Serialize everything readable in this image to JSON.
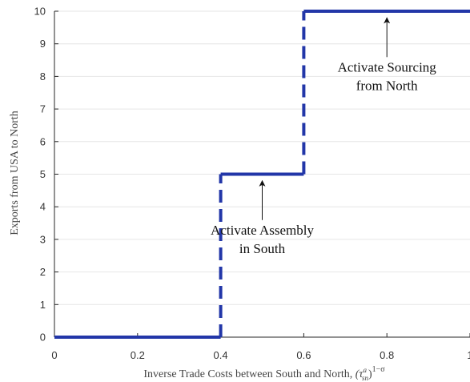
{
  "chart_data": {
    "type": "line",
    "title": "",
    "xlabel": "Inverse Trade Costs between South and North, ",
    "xlabel_math": "(τ",
    "xlabel_sup_a": "a",
    "xlabel_sub_sn": "sn",
    "xlabel_close": ")",
    "xlabel_exp": "1−σ",
    "ylabel": "Exports from USA to North",
    "xlim": [
      0,
      1
    ],
    "ylim": [
      0,
      10
    ],
    "xticks": [
      0,
      0.2,
      0.4,
      0.6,
      0.8,
      1
    ],
    "xtick_labels": [
      "0",
      "0.2",
      "0.4",
      "0.6",
      "0.8",
      "1"
    ],
    "yticks": [
      0,
      1,
      2,
      3,
      4,
      5,
      6,
      7,
      8,
      9,
      10
    ],
    "ytick_labels": [
      "0",
      "1",
      "2",
      "3",
      "4",
      "5",
      "6",
      "7",
      "8",
      "9",
      "10"
    ],
    "grid": "horizontal",
    "series": [
      {
        "color": "#2236a8",
        "segments": [
          {
            "style": "solid",
            "points": [
              [
                0,
                0
              ],
              [
                0.4,
                0
              ]
            ]
          },
          {
            "style": "dashed",
            "points": [
              [
                0.4,
                0
              ],
              [
                0.4,
                5
              ]
            ]
          },
          {
            "style": "solid",
            "points": [
              [
                0.4,
                5
              ],
              [
                0.6,
                5
              ]
            ]
          },
          {
            "style": "dashed",
            "points": [
              [
                0.6,
                5
              ],
              [
                0.6,
                10
              ]
            ]
          },
          {
            "style": "solid",
            "points": [
              [
                0.6,
                10
              ],
              [
                1,
                10
              ]
            ]
          }
        ]
      }
    ],
    "annotations": [
      {
        "lines": [
          "Activate Assembly",
          "in South"
        ],
        "arrow_to": [
          0.5,
          4.8
        ],
        "text_at": [
          0.5,
          3.15
        ]
      },
      {
        "lines": [
          "Activate Sourcing",
          "from North"
        ],
        "arrow_to": [
          0.8,
          9.8
        ],
        "text_at": [
          0.8,
          8.15
        ]
      }
    ]
  }
}
